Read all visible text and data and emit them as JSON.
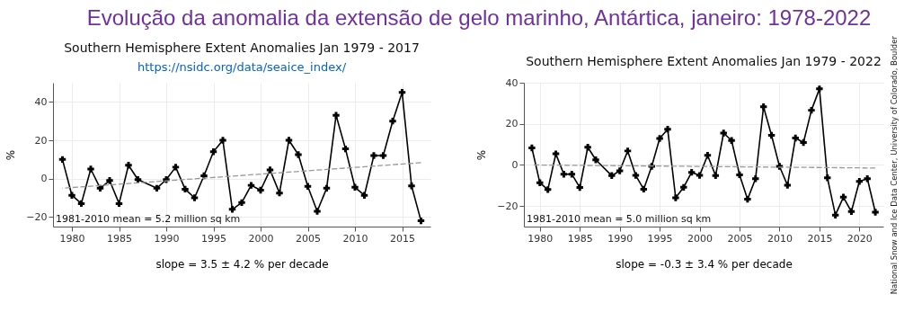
{
  "chart_data": [
    {
      "type": "line",
      "title": "Southern Hemisphere Extent Anomalies Jan 1979 - 2017",
      "subtitle": "https://nsidc.org/data/seaice_index/",
      "xlabel": "slope = 3.5 ± 4.2 % per decade",
      "ylabel": "%",
      "annotations": [
        "1981-2010 mean = 5.2 million sq km",
        "Evolução da anomalia da extensão de gelo marinho, Antártica, janeiro: 1978-2022"
      ],
      "xlim": [
        1978,
        2018
      ],
      "xticks": [
        1980,
        1985,
        1990,
        1995,
        2000,
        2005,
        2010,
        2015
      ],
      "ylim": [
        -25,
        50
      ],
      "yticks": [
        -20,
        0,
        20,
        40
      ],
      "grid": true,
      "series": [
        {
          "type": "line",
          "color": "#000000",
          "marker": "cross",
          "line_style": "solid",
          "x": [
            1979,
            1980,
            1981,
            1982,
            1983,
            1984,
            1985,
            1986,
            1987,
            1989,
            1990,
            1991,
            1992,
            1993,
            1994,
            1995,
            1996,
            1997,
            1998,
            1999,
            2000,
            2001,
            2002,
            2003,
            2004,
            2005,
            2006,
            2007,
            2008,
            2009,
            2010,
            2011,
            2012,
            2013,
            2014,
            2015,
            2016,
            2017
          ],
          "values": [
            10,
            -8.7,
            -13,
            5,
            -5,
            -1,
            -13,
            7,
            -0.5,
            -5,
            -0.5,
            6,
            -5.5,
            -10,
            1.5,
            14,
            20,
            -16,
            -12.5,
            -3.5,
            -6,
            4.5,
            -7.5,
            20,
            12.5,
            -4,
            -17,
            -5,
            33,
            15.5,
            -4.5,
            -8.7,
            12,
            12,
            30,
            45,
            -3.8,
            -22
          ]
        },
        {
          "type": "line",
          "color": "#999999",
          "marker": "none",
          "line_style": "dashed",
          "x": [
            1979,
            2017
          ],
          "values": [
            -5,
            8.3
          ]
        }
      ]
    },
    {
      "type": "line",
      "title": "Southern Hemisphere Extent Anomalies Jan 1979 - 2022",
      "xlabel": "slope = -0.3 ± 3.4 % per decade",
      "ylabel": "%",
      "annotations": [
        "1981-2010 mean = 5.0 million sq km",
        "National Snow and Ice Data Center, University of Colorado, Boulder"
      ],
      "xlim": [
        1978,
        2023
      ],
      "xticks": [
        1980,
        1985,
        1990,
        1995,
        2000,
        2005,
        2010,
        2015,
        2020
      ],
      "ylim": [
        -30,
        40
      ],
      "yticks": [
        -20,
        0,
        20,
        40
      ],
      "grid": true,
      "series": [
        {
          "type": "line",
          "color": "#000000",
          "marker": "cross",
          "line_style": "solid",
          "x": [
            1979,
            1980,
            1981,
            1982,
            1983,
            1984,
            1985,
            1986,
            1987,
            1989,
            1990,
            1991,
            1992,
            1993,
            1994,
            1995,
            1996,
            1997,
            1998,
            1999,
            2000,
            2001,
            2002,
            2003,
            2004,
            2005,
            2006,
            2007,
            2008,
            2009,
            2010,
            2011,
            2012,
            2013,
            2014,
            2015,
            2016,
            2017,
            2018,
            2019,
            2020,
            2021,
            2022
          ],
          "values": [
            8.3,
            -8.7,
            -12,
            5.4,
            -4.5,
            -4.5,
            -11,
            8.6,
            2.5,
            -5.2,
            -2.9,
            6.8,
            -5.1,
            -11.8,
            -0.7,
            12.9,
            17.4,
            -16,
            -10.9,
            -3.6,
            -5.1,
            4.7,
            -5.2,
            15.5,
            11.9,
            -4.8,
            -16.7,
            -6.7,
            28.3,
            14.4,
            -0.7,
            -9.9,
            13.1,
            10.9,
            26.6,
            37,
            -6.3,
            -24.4,
            -15.7,
            -22.7,
            -8,
            -6.7,
            -23
          ]
        },
        {
          "type": "line",
          "color": "#999999",
          "marker": "none",
          "line_style": "dashed",
          "x": [
            1979,
            2022
          ],
          "values": [
            0,
            -1.5
          ]
        }
      ]
    }
  ]
}
